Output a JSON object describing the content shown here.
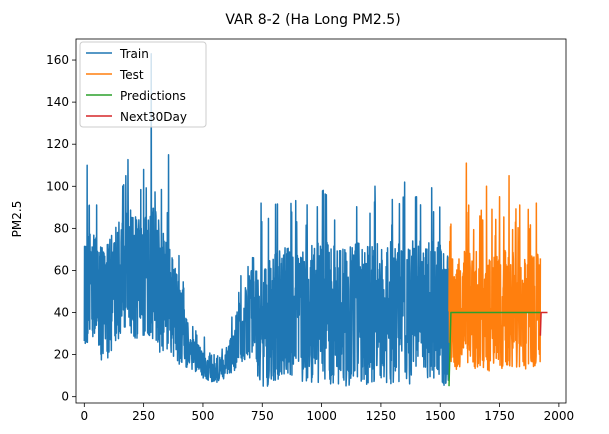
{
  "chart_data": {
    "type": "line",
    "title": "VAR 8-2 (Ha Long PM2.5)",
    "xlabel": "",
    "ylabel": "PM2.5",
    "xlim": [
      -35,
      2030
    ],
    "ylim": [
      -3,
      170
    ],
    "xticks": [
      0,
      250,
      500,
      750,
      1000,
      1250,
      1500,
      1750,
      2000
    ],
    "yticks": [
      0,
      20,
      40,
      60,
      80,
      100,
      120,
      140,
      160
    ],
    "grid": false,
    "legend_position": "top-left",
    "series": [
      {
        "name": "Train",
        "color": "#1f77b4",
        "x_range": [
          0,
          1537
        ],
        "anchors": [
          [
            0,
            45
          ],
          [
            20,
            55
          ],
          [
            40,
            50
          ],
          [
            60,
            48
          ],
          [
            80,
            42
          ],
          [
            100,
            45
          ],
          [
            120,
            50
          ],
          [
            140,
            55
          ],
          [
            160,
            58
          ],
          [
            180,
            62
          ],
          [
            200,
            58
          ],
          [
            230,
            55
          ],
          [
            260,
            60
          ],
          [
            280,
            62
          ],
          [
            300,
            55
          ],
          [
            330,
            50
          ],
          [
            360,
            45
          ],
          [
            400,
            35
          ],
          [
            430,
            25
          ],
          [
            460,
            20
          ],
          [
            500,
            16
          ],
          [
            530,
            14
          ],
          [
            560,
            13
          ],
          [
            590,
            14
          ],
          [
            620,
            20
          ],
          [
            650,
            30
          ],
          [
            680,
            35
          ],
          [
            700,
            38
          ],
          [
            720,
            36
          ],
          [
            750,
            32
          ],
          [
            800,
            38
          ],
          [
            850,
            40
          ],
          [
            900,
            40
          ],
          [
            1000,
            40
          ],
          [
            1100,
            38
          ],
          [
            1200,
            40
          ],
          [
            1300,
            40
          ],
          [
            1400,
            40
          ],
          [
            1500,
            40
          ],
          [
            1537,
            38
          ]
        ],
        "amplitude": [
          [
            0,
            26
          ],
          [
            200,
            30
          ],
          [
            300,
            34
          ],
          [
            400,
            20
          ],
          [
            450,
            8
          ],
          [
            600,
            6
          ],
          [
            650,
            15
          ],
          [
            700,
            22
          ],
          [
            760,
            30
          ],
          [
            1000,
            34
          ],
          [
            1537,
            34
          ]
        ],
        "spikes": [
          [
            12,
            110
          ],
          [
            282,
            163
          ],
          [
            355,
            115
          ],
          [
            175,
            105
          ],
          [
            250,
            108
          ],
          [
            1225,
            100
          ],
          [
            1350,
            102
          ],
          [
            1020,
            96
          ],
          [
            1400,
            95
          ],
          [
            745,
            92
          ]
        ],
        "min": 5,
        "max": 163
      },
      {
        "name": "Test",
        "color": "#ff7f0e",
        "x_range": [
          1537,
          1922
        ],
        "anchors": [
          [
            1537,
            40
          ],
          [
            1600,
            42
          ],
          [
            1700,
            40
          ],
          [
            1800,
            42
          ],
          [
            1922,
            40
          ]
        ],
        "amplitude": [
          [
            1537,
            28
          ],
          [
            1922,
            28
          ]
        ],
        "spikes": [
          [
            1610,
            111
          ],
          [
            1790,
            105
          ],
          [
            1695,
            100
          ],
          [
            1905,
            92
          ],
          [
            1545,
            82
          ],
          [
            1750,
            95
          ]
        ],
        "min": 5,
        "max": 111
      },
      {
        "name": "Predictions",
        "color": "#2ca02c",
        "points": [
          [
            1537,
            5
          ],
          [
            1545,
            40
          ],
          [
            1922,
            40
          ]
        ]
      },
      {
        "name": "Next30Day",
        "color": "#d62728",
        "points": [
          [
            1922,
            29
          ],
          [
            1925,
            40
          ],
          [
            1952,
            40
          ]
        ]
      }
    ]
  }
}
